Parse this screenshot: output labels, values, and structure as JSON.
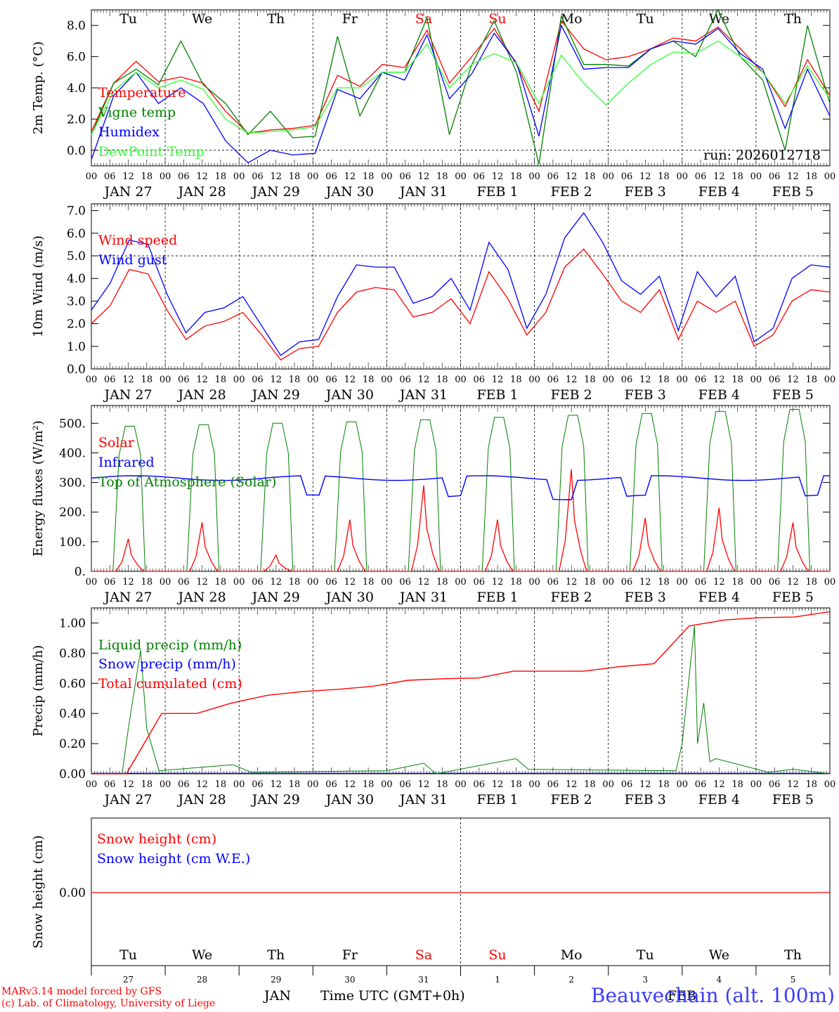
{
  "run_label": "run: 2026012718",
  "days": [
    "Tu",
    "We",
    "Th",
    "Fr",
    "Sa",
    "Su",
    "Mo",
    "Tu",
    "We",
    "Th"
  ],
  "day_colors": [
    "#000",
    "#000",
    "#000",
    "#000",
    "#ff0000",
    "#ff0000",
    "#000",
    "#000",
    "#000",
    "#000"
  ],
  "date_labels": [
    "JAN 27",
    "JAN 28",
    "JAN 29",
    "JAN 30",
    "JAN 31",
    "FEB  1",
    "FEB  2",
    "FEB  3",
    "FEB  4",
    "FEB  5"
  ],
  "hour_labels": [
    "00",
    "06",
    "12",
    "18"
  ],
  "bottom_day_numbers": [
    "27",
    "28",
    "29",
    "30",
    "31",
    "1",
    "2",
    "3",
    "4",
    "5"
  ],
  "footer": {
    "month_jan": "JAN",
    "month_feb": "FEB",
    "time_label": "Time UTC (GMT+0h)",
    "credit_line1": "MARv3.14 model forced by GFS",
    "credit_line2": "(c) Lab. of Climatology, University of Liege",
    "station": "Beauvechain (alt. 100m)"
  },
  "chart_data": [
    {
      "type": "line",
      "ylabel": "2m Temp. (°C)",
      "ylim": [
        -1.0,
        9.0
      ],
      "yticks": [
        0,
        2,
        4,
        6,
        8
      ],
      "ytick_labels": [
        "0.0",
        "2.0",
        "4.0",
        "6.0",
        "8.0"
      ],
      "hline": 0.0,
      "x_hours": [
        0,
        6,
        12,
        18,
        24,
        30,
        36,
        42,
        48,
        54,
        60,
        66,
        72,
        78,
        84,
        90,
        96,
        102,
        108,
        114,
        120,
        126,
        132,
        138,
        144,
        150,
        156,
        162,
        168,
        174,
        180,
        186,
        192,
        198,
        204,
        210,
        216,
        222,
        228,
        234,
        240
      ],
      "series": [
        {
          "name": "Temperature",
          "color": "#ff0000",
          "values": [
            1.2,
            4.3,
            5.7,
            4.4,
            4.7,
            4.3,
            2.5,
            1.1,
            1.3,
            1.4,
            1.6,
            4.8,
            4.1,
            5.5,
            5.3,
            7.7,
            4.3,
            6.0,
            7.8,
            5.5,
            2.5,
            8.3,
            6.5,
            5.8,
            6.0,
            6.5,
            7.2,
            7.0,
            7.9,
            6.5,
            5.0,
            2.8,
            5.8,
            3.5
          ]
        },
        {
          "name": "Vigne temp",
          "color": "#008000",
          "values": [
            1.0,
            4.3,
            5.2,
            4.2,
            7.0,
            4.2,
            3.0,
            1.0,
            2.5,
            0.8,
            0.9,
            7.3,
            2.2,
            5.0,
            5.0,
            8.5,
            1.0,
            5.5,
            8.3,
            5.0,
            -0.9,
            8.6,
            5.5,
            5.5,
            5.4,
            6.5,
            7.0,
            6.0,
            9.0,
            6.0,
            4.5,
            0.0,
            8.0,
            3.0
          ]
        },
        {
          "name": "Humidex",
          "color": "#0000ff",
          "values": [
            -0.6,
            3.5,
            5.0,
            3.0,
            4.0,
            3.0,
            0.6,
            -0.8,
            0.0,
            -0.3,
            -0.2,
            3.9,
            3.3,
            5.0,
            4.5,
            7.4,
            3.3,
            4.9,
            7.5,
            5.6,
            0.9,
            8.0,
            5.2,
            5.3,
            5.3,
            6.5,
            7.0,
            6.8,
            7.8,
            6.2,
            5.2,
            1.4,
            5.2,
            2.2
          ]
        },
        {
          "name": "DewPoint Temp",
          "color": "#33ff33",
          "values": [
            1.0,
            3.8,
            5.0,
            4.0,
            4.5,
            3.9,
            2.0,
            1.1,
            1.2,
            1.3,
            1.5,
            4.0,
            4.0,
            5.0,
            5.0,
            6.8,
            4.0,
            5.5,
            6.2,
            5.6,
            3.0,
            6.1,
            4.3,
            2.9,
            4.3,
            5.5,
            6.3,
            6.2,
            7.0,
            6.0,
            5.0,
            3.0,
            5.4,
            3.3
          ]
        }
      ],
      "series_x_hours": [
        0,
        12,
        18,
        24,
        36,
        48,
        60,
        72,
        90,
        108,
        120,
        132,
        138,
        150,
        156,
        168,
        180,
        186,
        192,
        210,
        228,
        240,
        252,
        264,
        276,
        288,
        300,
        312,
        324,
        336,
        348,
        360,
        372,
        384,
        396,
        408,
        420,
        432,
        444,
        456,
        468,
        480,
        492,
        504,
        516,
        528,
        540,
        552,
        564,
        576,
        588,
        600,
        612,
        624,
        636,
        648,
        660,
        672,
        684,
        696,
        708,
        720,
        732,
        744,
        756,
        768,
        780,
        792,
        804,
        816,
        828,
        840,
        852,
        864,
        876,
        888,
        900,
        912,
        924,
        936,
        948,
        960
      ]
    },
    {
      "type": "line",
      "ylabel": "10m Wind (m/s)",
      "ylim": [
        0,
        7.3
      ],
      "yticks": [
        0,
        1,
        2,
        3,
        4,
        5,
        6,
        7
      ],
      "ytick_labels": [
        "0.0",
        "1.0",
        "2.0",
        "3.0",
        "4.0",
        "5.0",
        "6.0",
        "7.0"
      ],
      "hline": 5.0,
      "series": [
        {
          "name": "Wind speed",
          "color": "#ff0000",
          "values": [
            2.0,
            2.8,
            4.4,
            4.2,
            2.6,
            1.3,
            1.9,
            2.1,
            2.5,
            1.5,
            0.4,
            0.9,
            1.0,
            2.5,
            3.4,
            3.6,
            3.5,
            2.3,
            2.5,
            3.1,
            2.0,
            4.3,
            3.1,
            1.5,
            2.5,
            4.5,
            5.3,
            4.2,
            3.0,
            2.5,
            3.5,
            1.3,
            3.0,
            2.5,
            3.0,
            1.0,
            1.5,
            3.0,
            3.5,
            3.4
          ]
        },
        {
          "name": "Wind gust",
          "color": "#0000ff",
          "values": [
            2.6,
            3.8,
            5.7,
            5.5,
            3.3,
            1.6,
            2.5,
            2.7,
            3.2,
            1.9,
            0.6,
            1.2,
            1.3,
            3.2,
            4.6,
            4.5,
            4.5,
            2.9,
            3.2,
            4.0,
            2.6,
            5.6,
            4.4,
            1.8,
            3.3,
            5.8,
            6.9,
            5.6,
            3.9,
            3.3,
            4.1,
            1.7,
            4.3,
            3.2,
            4.1,
            1.2,
            1.8,
            4.0,
            4.6,
            4.5
          ]
        }
      ]
    },
    {
      "type": "line",
      "ylabel": "Energy fluxes (W/m²)",
      "ylim": [
        0,
        560
      ],
      "yticks": [
        0,
        100,
        200,
        300,
        400,
        500
      ],
      "ytick_labels": [
        "0.",
        "100.",
        "200.",
        "300.",
        "400.",
        "500."
      ],
      "series": [
        {
          "name": "Solar",
          "color": "#ff0000",
          "peaks": [
            110,
            165,
            55,
            175,
            290,
            175,
            345,
            180,
            215,
            165
          ]
        },
        {
          "name": "Infrared",
          "color": "#0000ff",
          "baseline": 315
        },
        {
          "name": "Top of Atmosphere (Solar)",
          "color": "#008000",
          "peaks": [
            490,
            495,
            500,
            505,
            512,
            520,
            527,
            533,
            540,
            547
          ]
        }
      ]
    },
    {
      "type": "line",
      "ylabel": "Precip (mm/h)",
      "ylim": [
        0,
        1.1
      ],
      "yticks": [
        0,
        0.2,
        0.4,
        0.6,
        0.8,
        1.0
      ],
      "ytick_labels": [
        "0.00",
        "0.20",
        "0.40",
        "0.60",
        "0.80",
        "1.00"
      ],
      "series": [
        {
          "name": "Liquid precip (mm/h)",
          "color": "#008000"
        },
        {
          "name": "Snow precip (mm/h)",
          "color": "#0000ff"
        },
        {
          "name": "Total cumulated (cm)",
          "color": "#ff0000",
          "values": [
            0.0,
            0.0,
            0.4,
            0.4,
            0.47,
            0.52,
            0.545,
            0.56,
            0.58,
            0.62,
            0.63,
            0.635,
            0.68,
            0.68,
            0.68,
            0.71,
            0.73,
            0.98,
            1.02,
            1.035,
            1.04,
            1.075
          ]
        }
      ]
    },
    {
      "type": "line",
      "ylabel": "Snow height (cm)",
      "ytick_labels": [
        "0.00"
      ],
      "series": [
        {
          "name": "Snow height (cm)",
          "color": "#ff0000",
          "values": [
            0.0,
            0.0
          ]
        },
        {
          "name": "Snow height (cm W.E.)",
          "color": "#0000ff",
          "values": [
            0.0,
            0.0
          ]
        }
      ]
    }
  ]
}
